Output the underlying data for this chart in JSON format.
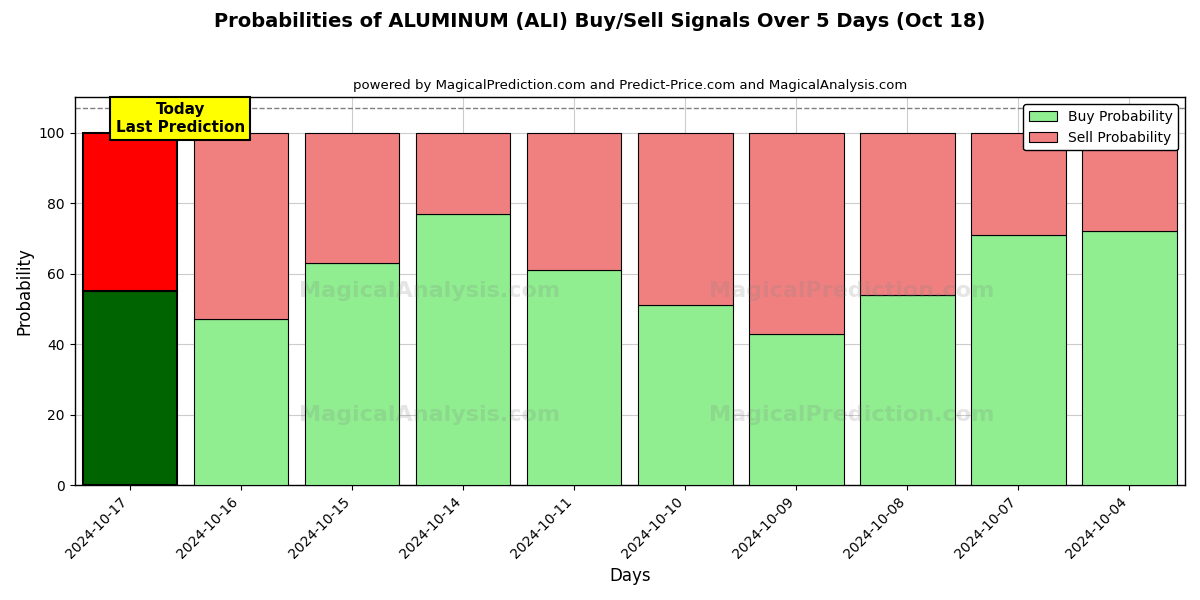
{
  "title": "Probabilities of ALUMINUM (ALI) Buy/Sell Signals Over 5 Days (Oct 18)",
  "subtitle": "powered by MagicalPrediction.com and Predict-Price.com and MagicalAnalysis.com",
  "xlabel": "Days",
  "ylabel": "Probability",
  "dates": [
    "2024-10-17",
    "2024-10-16",
    "2024-10-15",
    "2024-10-14",
    "2024-10-11",
    "2024-10-10",
    "2024-10-09",
    "2024-10-08",
    "2024-10-07",
    "2024-10-04"
  ],
  "buy_values": [
    55,
    47,
    63,
    77,
    61,
    51,
    43,
    54,
    71,
    72
  ],
  "sell_values": [
    45,
    53,
    37,
    23,
    39,
    49,
    57,
    46,
    29,
    28
  ],
  "today_buy_color": "#006400",
  "today_sell_color": "#ff0000",
  "buy_color": "#90ee90",
  "sell_color": "#f08080",
  "today_label_bg": "#ffff00",
  "today_label_text": "Today\nLast Prediction",
  "legend_buy": "Buy Probability",
  "legend_sell": "Sell Probability",
  "ylim": [
    0,
    110
  ],
  "dashed_line_y": 107,
  "bg_color": "#ffffff",
  "grid_color": "#cccccc"
}
